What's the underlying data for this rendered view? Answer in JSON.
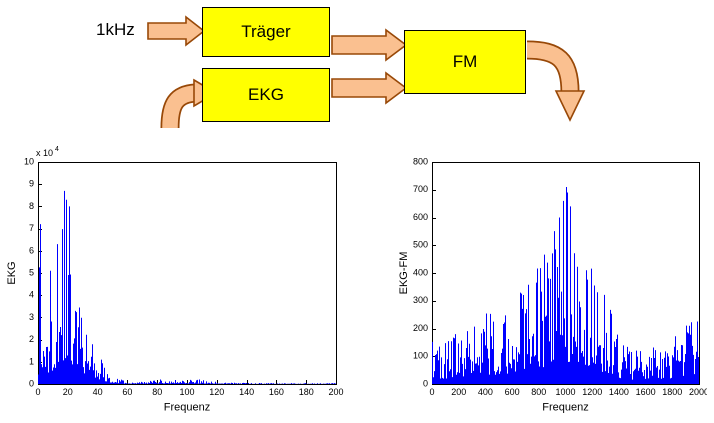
{
  "diagram": {
    "input_label": "1kHz",
    "blocks": [
      {
        "id": "traeger",
        "label": "Träger"
      },
      {
        "id": "ekg",
        "label": "EKG"
      },
      {
        "id": "fm",
        "label": "FM"
      }
    ],
    "colors": {
      "block_fill": "#FFFF00",
      "block_border": "#000000",
      "arrow_fill": "#FAC090",
      "arrow_border": "#984807",
      "series_blue": "#0000FF"
    }
  },
  "chart_data": [
    {
      "type": "line",
      "title": "",
      "xlabel": "Frequenz",
      "ylabel": "EKG",
      "exp_prefix": "x 10",
      "exp_sup": "4",
      "xlim": [
        0,
        200
      ],
      "ylim": [
        0,
        10
      ],
      "xticks": [
        0,
        20,
        40,
        60,
        80,
        100,
        120,
        140,
        160,
        180,
        200
      ],
      "yticks": [
        0,
        1,
        2,
        3,
        4,
        5,
        6,
        7,
        8,
        9,
        10
      ],
      "grid": false,
      "series_color": "#0000FF",
      "seed": 1337,
      "envelope": [
        [
          0,
          0.3
        ],
        [
          1,
          7.3
        ],
        [
          2,
          2.5
        ],
        [
          3,
          1.8
        ],
        [
          4,
          3.2
        ],
        [
          5,
          4.6
        ],
        [
          6,
          3.5
        ],
        [
          7,
          3.0
        ],
        [
          8,
          5.0
        ],
        [
          10,
          4.2
        ],
        [
          12,
          6.2
        ],
        [
          14,
          5.0
        ],
        [
          16,
          6.5
        ],
        [
          17,
          8.7
        ],
        [
          19,
          8.0
        ],
        [
          20,
          8.6
        ],
        [
          22,
          5.5
        ],
        [
          24,
          4.5
        ],
        [
          26,
          4.0
        ],
        [
          28,
          3.6
        ],
        [
          30,
          3.2
        ],
        [
          33,
          2.6
        ],
        [
          36,
          2.2
        ],
        [
          40,
          1.7
        ],
        [
          44,
          1.1
        ],
        [
          48,
          0.6
        ],
        [
          52,
          0.35
        ],
        [
          56,
          0.2
        ],
        [
          60,
          0.12
        ],
        [
          70,
          0.1
        ],
        [
          75,
          0.15
        ],
        [
          80,
          0.2
        ],
        [
          85,
          0.22
        ],
        [
          90,
          0.22
        ],
        [
          95,
          0.24
        ],
        [
          100,
          0.25
        ],
        [
          105,
          0.22
        ],
        [
          110,
          0.2
        ],
        [
          115,
          0.15
        ],
        [
          120,
          0.1
        ],
        [
          125,
          0.07
        ],
        [
          130,
          0.06
        ],
        [
          140,
          0.05
        ],
        [
          160,
          0.04
        ],
        [
          180,
          0.04
        ],
        [
          200,
          0.04
        ]
      ],
      "spikes": [
        [
          1.5,
          7.2
        ],
        [
          13,
          6.3
        ],
        [
          17.5,
          8.7
        ],
        [
          19,
          8.3
        ],
        [
          20.5,
          8.0
        ],
        [
          8,
          5.1
        ]
      ]
    },
    {
      "type": "line",
      "title": "",
      "xlabel": "Frequenz",
      "ylabel": "EKG-FM",
      "exp_prefix": "",
      "exp_sup": "",
      "xlim": [
        0,
        2000
      ],
      "ylim": [
        0,
        800
      ],
      "xticks": [
        0,
        200,
        400,
        600,
        800,
        1000,
        1200,
        1400,
        1600,
        1800,
        2000
      ],
      "yticks": [
        0,
        100,
        200,
        300,
        400,
        500,
        600,
        700,
        800
      ],
      "grid": false,
      "series_color": "#0000FF",
      "seed": 777,
      "envelope": [
        [
          0,
          180
        ],
        [
          50,
          150
        ],
        [
          100,
          160
        ],
        [
          150,
          170
        ],
        [
          200,
          190
        ],
        [
          250,
          200
        ],
        [
          300,
          210
        ],
        [
          350,
          230
        ],
        [
          400,
          270
        ],
        [
          450,
          260
        ],
        [
          500,
          280
        ],
        [
          550,
          300
        ],
        [
          600,
          330
        ],
        [
          650,
          360
        ],
        [
          700,
          390
        ],
        [
          750,
          420
        ],
        [
          800,
          450
        ],
        [
          850,
          500
        ],
        [
          900,
          540
        ],
        [
          950,
          600
        ],
        [
          1000,
          700
        ],
        [
          1030,
          640
        ],
        [
          1060,
          580
        ],
        [
          1100,
          560
        ],
        [
          1150,
          520
        ],
        [
          1200,
          440
        ],
        [
          1250,
          400
        ],
        [
          1300,
          320
        ],
        [
          1350,
          250
        ],
        [
          1400,
          180
        ],
        [
          1450,
          140
        ],
        [
          1500,
          130
        ],
        [
          1550,
          120
        ],
        [
          1600,
          120
        ],
        [
          1650,
          130
        ],
        [
          1700,
          140
        ],
        [
          1750,
          150
        ],
        [
          1800,
          170
        ],
        [
          1850,
          190
        ],
        [
          1900,
          210
        ],
        [
          1950,
          230
        ],
        [
          2000,
          260
        ]
      ],
      "spikes": [
        [
          1000,
          710
        ],
        [
          980,
          660
        ],
        [
          1030,
          640
        ],
        [
          950,
          600
        ],
        [
          1010,
          690
        ]
      ]
    }
  ]
}
